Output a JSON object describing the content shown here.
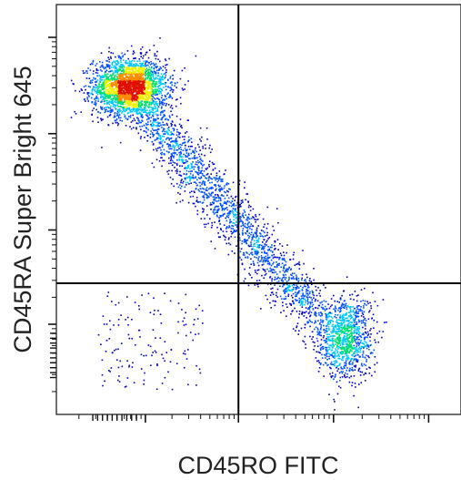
{
  "chart_data": {
    "type": "scatter",
    "subtype": "flow-cytometry-density-dot-plot",
    "xlabel": "CD45RO FITC",
    "ylabel": "CD45RA Super Bright 645",
    "x_scale": "biexponential",
    "y_scale": "biexponential",
    "tick_labels_printed": false,
    "quadrant_gate": {
      "x": 0.45,
      "y": 0.32
    },
    "density_colors": [
      "#0000c8",
      "#0050ff",
      "#00c8ff",
      "#00e070",
      "#f0f000",
      "#ff8c00",
      "#e01000"
    ],
    "populations": [
      {
        "x_range": [
          0.05,
          0.3
        ],
        "y_range": [
          0.72,
          0.9
        ],
        "peak": [
          0.18,
          0.8
        ],
        "density": "very high"
      },
      {
        "x_range": [
          0.25,
          0.55
        ],
        "y_range": [
          0.4,
          0.7
        ],
        "density": "medium"
      },
      {
        "x_range": [
          0.6,
          0.82
        ],
        "y_range": [
          0.08,
          0.32
        ],
        "peak": [
          0.72,
          0.18
        ],
        "density": "high"
      },
      {
        "x_range": [
          0.1,
          0.35
        ],
        "y_range": [
          0.05,
          0.3
        ],
        "density": "sparse"
      }
    ],
    "grid": false,
    "legend": "none"
  }
}
